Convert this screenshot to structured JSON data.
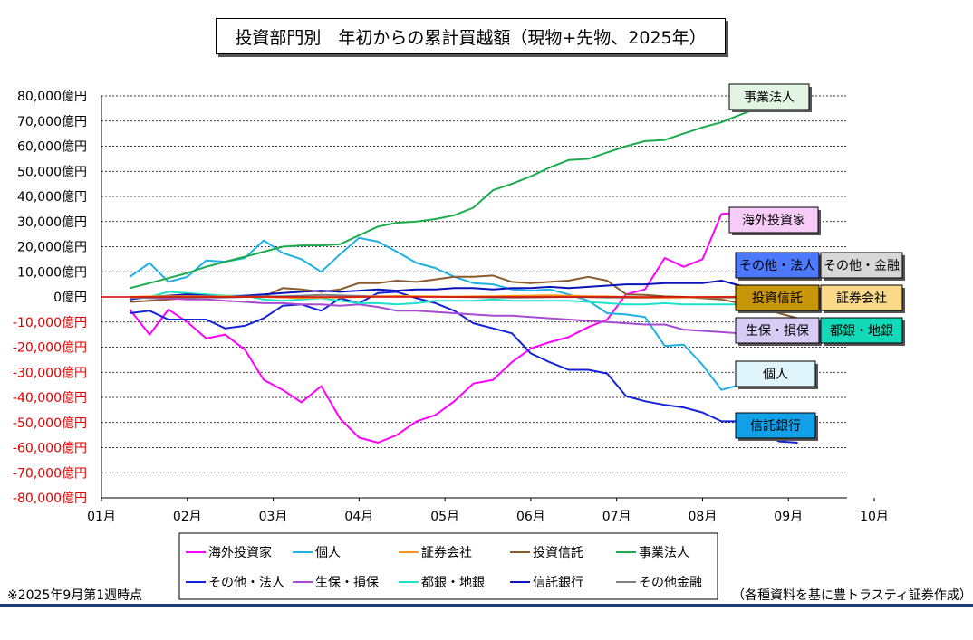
{
  "chart_data": {
    "type": "line",
    "title": "投資部門別　年初からの累計買越額（現物+先物、2025年）",
    "xlabel": "",
    "ylabel": "",
    "ylim": [
      -80000,
      80000
    ],
    "y_ticks": [
      80000,
      70000,
      60000,
      50000,
      40000,
      30000,
      20000,
      10000,
      0,
      -10000,
      -20000,
      -30000,
      -40000,
      -50000,
      -60000,
      -70000,
      -80000
    ],
    "y_tick_labels": [
      "80,000億円",
      "70,000億円",
      "60,000億円",
      "50,000億円",
      "40,000億円",
      "30,000億円",
      "20,000億円",
      "10,000億円",
      "0億円",
      "-10,000億円",
      "-20,000億円",
      "-30,000億円",
      "-40,000億円",
      "-50,000億円",
      "-60,000億円",
      "-70,000億円",
      "-80,000億円"
    ],
    "xlim": [
      1,
      10
    ],
    "x_ticks": [
      1,
      2,
      3,
      4,
      5,
      6,
      7,
      8,
      9,
      10
    ],
    "x_tick_labels": [
      "01月",
      "02月",
      "03月",
      "04月",
      "05月",
      "06月",
      "07月",
      "08月",
      "09月",
      "10月"
    ],
    "grid": true,
    "x": [
      1.33,
      1.56,
      1.78,
      2.0,
      2.22,
      2.44,
      2.67,
      2.89,
      3.11,
      3.33,
      3.56,
      3.78,
      4.0,
      4.22,
      4.44,
      4.67,
      4.89,
      5.11,
      5.33,
      5.56,
      5.78,
      6.0,
      6.22,
      6.44,
      6.67,
      6.89,
      7.11,
      7.33,
      7.56,
      7.78,
      8.0,
      8.22,
      8.44,
      8.67,
      8.89,
      9.11
    ],
    "series": [
      {
        "name": "海外投資家",
        "color": "#ff00ff",
        "values": [
          -5000,
          -15000,
          -5000,
          -10000,
          -16500,
          -15000,
          -21000,
          -33000,
          -37000,
          -42000,
          -35500,
          -48500,
          -56000,
          -58000,
          -55000,
          -49500,
          -47000,
          -41500,
          -34500,
          -33000,
          -26000,
          -20500,
          -18000,
          -16000,
          -12000,
          -9000,
          1000,
          3000,
          15500,
          12000,
          15000,
          33000,
          33500,
          27000,
          28000,
          28500
        ]
      },
      {
        "name": "個人",
        "color": "#1fb0e6",
        "values": [
          8000,
          13500,
          6000,
          8000,
          14500,
          14000,
          15500,
          22500,
          17500,
          15000,
          10000,
          17000,
          23500,
          22000,
          18000,
          13500,
          11500,
          8000,
          5500,
          5000,
          3000,
          2500,
          3000,
          1000,
          -1500,
          -6500,
          -7000,
          -8000,
          -19500,
          -19000,
          -27000,
          -37000,
          -35000,
          -30500,
          -29500,
          -29000
        ]
      },
      {
        "name": "証券会社",
        "color": "#f7941d",
        "values": [
          0,
          200,
          300,
          300,
          200,
          200,
          100,
          0,
          -200,
          -400,
          -300,
          -200,
          0,
          200,
          400,
          300,
          200,
          100,
          200,
          300,
          400,
          500,
          600,
          500,
          300,
          200,
          0,
          -200,
          -300,
          -200,
          -100,
          0,
          100,
          0,
          -100,
          -200
        ]
      },
      {
        "name": "投資信託",
        "color": "#8b5a2b",
        "values": [
          -2000,
          -1500,
          -1000,
          -500,
          0,
          300,
          200,
          100,
          3500,
          3000,
          2000,
          3000,
          5500,
          5500,
          6500,
          6000,
          7000,
          8000,
          8000,
          8500,
          6000,
          5500,
          6000,
          6500,
          8000,
          6500,
          1000,
          800,
          200,
          0,
          -500,
          -1000,
          -2500,
          -4500,
          -6500,
          -8500
        ]
      },
      {
        "name": "事業法人",
        "color": "#1cac4e",
        "values": [
          3500,
          5500,
          7500,
          9500,
          12000,
          14000,
          16000,
          18000,
          20000,
          20500,
          20500,
          21000,
          24500,
          28000,
          29500,
          30000,
          31000,
          32500,
          35500,
          42500,
          45000,
          48000,
          51500,
          54500,
          55000,
          57500,
          60000,
          62000,
          62500,
          65000,
          67500,
          69500,
          72500,
          75500,
          79000,
          80000
        ]
      },
      {
        "name": "その他・法人",
        "color": "#1423d9",
        "values": [
          -6500,
          -5500,
          -9000,
          -9000,
          -9000,
          -12500,
          -11500,
          -8500,
          -3500,
          -3000,
          -5500,
          -500,
          -2500,
          1500,
          2000,
          -500,
          -2500,
          -5500,
          -10500,
          -12500,
          -14500,
          -22500,
          -26000,
          -29000,
          -29000,
          -30500,
          -39500,
          -41500,
          -43000,
          -44000,
          -46000,
          -49500,
          -49500,
          -53500,
          -57500,
          -58000
        ]
      },
      {
        "name": "生保・損保",
        "color": "#a84bd3",
        "values": [
          0,
          -500,
          -500,
          -1000,
          -1000,
          -1500,
          -2000,
          -2500,
          -2500,
          -3000,
          -3000,
          -3500,
          -3000,
          -4000,
          -5500,
          -5500,
          -6000,
          -6500,
          -7000,
          -7500,
          -7500,
          -8000,
          -8500,
          -9000,
          -9500,
          -10000,
          -10500,
          -11000,
          -11000,
          -13000,
          -13500,
          -14000,
          -14500,
          -15000,
          -15500,
          -16000
        ]
      },
      {
        "name": "都銀・地銀",
        "color": "#1ee3c8",
        "values": [
          0,
          0,
          2000,
          1500,
          1000,
          500,
          500,
          -1000,
          -1500,
          -1000,
          -500,
          -1500,
          -2500,
          -2500,
          -3000,
          -2500,
          -1500,
          -1500,
          -1500,
          -1000,
          -1500,
          -1500,
          -1500,
          -1500,
          -2000,
          -2500,
          -3000,
          -3000,
          -2500,
          -3000,
          -3000,
          -3000,
          -3000,
          -2500,
          -3000,
          -3500
        ]
      },
      {
        "name": "信託銀行",
        "color": "#0b14b8",
        "values": [
          -1000,
          0,
          500,
          1000,
          500,
          0,
          500,
          1000,
          1500,
          2000,
          2500,
          2000,
          2500,
          3000,
          2500,
          3000,
          3000,
          3500,
          3500,
          3000,
          3500,
          3500,
          4000,
          3500,
          4000,
          4500,
          5000,
          5000,
          5500,
          5500,
          5500,
          6500,
          4500,
          4500,
          4000,
          4000
        ]
      },
      {
        "name": "その他金融",
        "color": "#808080",
        "values": [
          -500,
          -300,
          0,
          -200,
          -300,
          -200,
          0,
          200,
          300,
          500,
          800,
          600,
          400,
          300,
          200,
          200,
          100,
          0,
          -100,
          -200,
          -300,
          -200,
          -100,
          0,
          -100,
          -200,
          -300,
          -400,
          -300,
          -200,
          -300,
          -300,
          -200,
          -300,
          -300,
          -300
        ]
      }
    ],
    "callouts": [
      {
        "text": "事業法人",
        "bg": "#e2f5e2"
      },
      {
        "text": "海外投資家",
        "bg": "#f8ccf8"
      },
      {
        "text": "その他・法人",
        "bg": "#4d79ff"
      },
      {
        "text": "その他・金融",
        "bg": "#d8d8d8"
      },
      {
        "text": "投資信託",
        "bg": "#c8960a"
      },
      {
        "text": "証券会社",
        "bg": "#fbd98a"
      },
      {
        "text": "生保・損保",
        "bg": "#d6ccf5"
      },
      {
        "text": "都銀・地銀",
        "bg": "#14d9b8"
      },
      {
        "text": "個人",
        "bg": "#dff5fb"
      },
      {
        "text": "信託銀行",
        "bg": "#12a0e8"
      }
    ],
    "legend": {
      "placement": "bottom",
      "entries": [
        {
          "label": "海外投資家",
          "color": "#ff00ff"
        },
        {
          "label": "個人",
          "color": "#1fb0e6"
        },
        {
          "label": "証券会社",
          "color": "#f7941d"
        },
        {
          "label": "投資信託",
          "color": "#8b5a2b"
        },
        {
          "label": "事業法人",
          "color": "#1cac4e"
        },
        {
          "label": "その他・法人",
          "color": "#1423d9"
        },
        {
          "label": "生保・損保",
          "color": "#a84bd3"
        },
        {
          "label": "都銀・地銀",
          "color": "#1ee3c8"
        },
        {
          "label": "信託銀行",
          "color": "#0b14b8"
        },
        {
          "label": "その他金融",
          "color": "#808080"
        }
      ]
    },
    "zero_line_color": "#d40000"
  },
  "notes": {
    "left": "※2025年9月第1週時点",
    "right": "（各種資料を基に豊トラスティ証券作成）"
  }
}
